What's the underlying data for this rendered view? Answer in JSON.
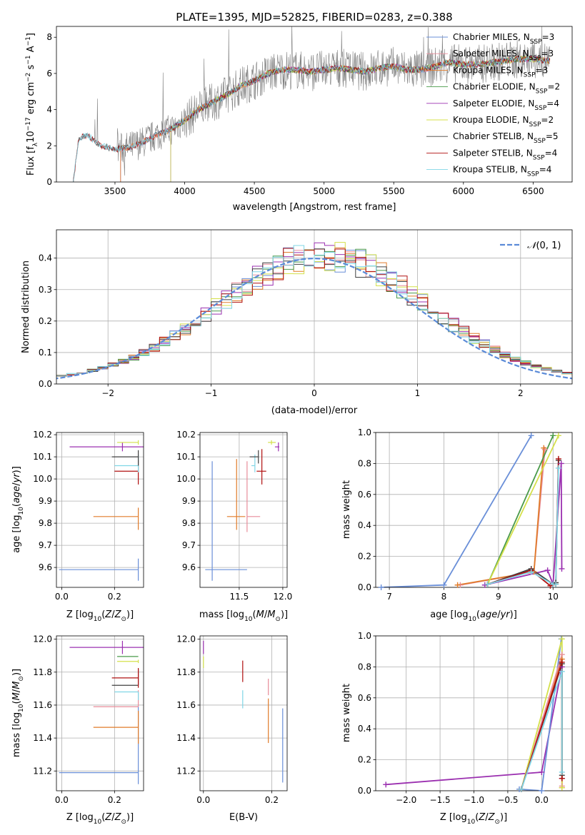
{
  "figure": {
    "title": "PLATE=1395, MJD=52825, FIBERID=0283, z=0.388"
  },
  "colors": {
    "Chabrier MILES": "#6a8fd8",
    "Salpeter MILES": "#e88c9a",
    "Kroupa MILES": "#e07b2a",
    "Chabrier ELODIE": "#4a9a4a",
    "Salpeter ELODIE": "#9b30b0",
    "Kroupa ELODIE": "#d4e04a",
    "Chabrier STELIB": "#404040",
    "Salpeter STELIB": "#b01010",
    "Kroupa STELIB": "#7fd6e6",
    "data": "#808080",
    "normal": "#5b8bd8"
  },
  "chart_data": [
    {
      "id": "spectrum",
      "type": "line",
      "title": "PLATE=1395, MJD=52825, FIBERID=0283, z=0.388",
      "xlabel": "wavelength [Angstrom, rest frame]",
      "ylabel": "Flux [f_λ 10^-17 erg cm^-2 s^-1 A^-1]",
      "xlim": [
        3080,
        6780
      ],
      "ylim": [
        0,
        8.6
      ],
      "xticks": [
        3500,
        4000,
        4500,
        5000,
        5500,
        6000,
        6500
      ],
      "yticks": [
        0,
        2,
        4,
        6,
        8
      ],
      "legend_position": "top-right",
      "legend": [
        "Chabrier MILES, N_SSP=3",
        "Salpeter MILES, N_SSP=3",
        "Kroupa MILES, N_SSP=3",
        "Chabrier ELODIE, N_SSP=2",
        "Salpeter ELODIE, N_SSP=4",
        "Kroupa ELODIE, N_SSP=2",
        "Chabrier STELIB, N_SSP=5",
        "Salpeter STELIB, N_SSP=4",
        "Kroupa STELIB, N_SSP=4"
      ],
      "continuum": {
        "x": [
          3200,
          3240,
          3300,
          3400,
          3500,
          3600,
          3700,
          3800,
          3900,
          4000,
          4100,
          4200,
          4300,
          4400,
          4500,
          4600,
          4700,
          4800,
          4900,
          5000,
          5100,
          5200,
          5300,
          5400,
          5500,
          5600,
          5700,
          5800,
          5900,
          6000,
          6100,
          6200,
          6300,
          6400,
          6500,
          6600
        ],
        "y": [
          0,
          2.4,
          2.6,
          2.0,
          1.8,
          1.9,
          2.2,
          2.6,
          2.9,
          3.4,
          4.0,
          4.4,
          4.8,
          5.3,
          5.6,
          6.0,
          6.2,
          6.2,
          6.1,
          6.2,
          6.3,
          6.2,
          6.1,
          6.3,
          6.4,
          6.2,
          6.2,
          6.4,
          6.6,
          6.5,
          6.5,
          6.6,
          6.7,
          6.8,
          6.8,
          6.7
        ]
      },
      "model_start": {
        "Chabrier MILES": 3540,
        "Salpeter MILES": 3540,
        "Kroupa MILES": 3540,
        "Chabrier ELODIE": 3900,
        "Salpeter ELODIE": 3900,
        "Kroupa ELODIE": 3900,
        "Chabrier STELIB": 3200,
        "Salpeter STELIB": 3200,
        "Kroupa STELIB": 3200
      }
    },
    {
      "id": "residuals",
      "type": "line",
      "xlabel": "(data-model)/error",
      "ylabel": "Normed distribution",
      "xlim": [
        -2.5,
        2.5
      ],
      "ylim": [
        0,
        0.49
      ],
      "xticks": [
        -2,
        -1,
        0,
        1,
        2
      ],
      "yticks": [
        0.0,
        0.1,
        0.2,
        0.3,
        0.4
      ],
      "grid": true,
      "legend_position": "top-right",
      "legend": [
        "N(0,1)"
      ],
      "bin_width": 0.1
    },
    {
      "id": "age_vs_Z",
      "type": "scatter",
      "xlabel": "Z [log10(Z/Z⊙)]",
      "ylabel": "age  [log10(age/yr)]",
      "xlim": [
        -0.02,
        0.31
      ],
      "ylim": [
        9.51,
        10.21
      ],
      "xticks": [
        0.0,
        0.2
      ],
      "yticks": [
        9.6,
        9.7,
        9.8,
        9.9,
        10.0,
        10.1,
        10.2
      ],
      "grid": true,
      "points": [
        {
          "series": "Chabrier MILES",
          "x": 0.29,
          "xerr": [
            0.3,
            0.0
          ],
          "y": 9.59,
          "yerr": [
            0.05,
            0.05
          ]
        },
        {
          "series": "Kroupa MILES",
          "x": 0.29,
          "xerr": [
            0.17,
            0.0
          ],
          "y": 9.83,
          "yerr": [
            0.06,
            0.04
          ]
        },
        {
          "series": "Salpeter STELIB",
          "x": 0.29,
          "xerr": [
            0.09,
            0.0
          ],
          "y": 10.035,
          "yerr": [
            0.06,
            0.05
          ]
        },
        {
          "series": "Kroupa STELIB",
          "x": 0.29,
          "xerr": [
            0.09,
            0.0
          ],
          "y": 10.06,
          "yerr": [
            0.03,
            0.05
          ]
        },
        {
          "series": "Chabrier STELIB",
          "x": 0.29,
          "xerr": [
            0.1,
            0.0
          ],
          "y": 10.1,
          "yerr": [
            0.04,
            0.03
          ]
        },
        {
          "series": "Salpeter ELODIE",
          "x": 0.23,
          "xerr": [
            0.2,
            0.08
          ],
          "y": 10.145,
          "yerr": [
            0.02,
            0.02
          ]
        },
        {
          "series": "Kroupa ELODIE",
          "x": 0.29,
          "xerr": [
            0.08,
            0.0
          ],
          "y": 10.165,
          "yerr": [
            0.01,
            0.01
          ]
        }
      ]
    },
    {
      "id": "age_vs_mass",
      "type": "scatter",
      "xlabel": "mass [log10(M/M⊙)]",
      "ylabel": "",
      "xlim": [
        11.05,
        12.05
      ],
      "ylim": [
        9.51,
        10.21
      ],
      "xticks": [
        11.5,
        12.0
      ],
      "yticks": [
        9.6,
        9.7,
        9.8,
        9.9,
        10.0,
        10.1,
        10.2
      ],
      "grid": true,
      "points": [
        {
          "series": "Chabrier MILES",
          "x": 11.19,
          "xerr": [
            0.08,
            0.4
          ],
          "y": 9.59,
          "yerr": [
            0.05,
            0.49
          ]
        },
        {
          "series": "Kroupa MILES",
          "x": 11.47,
          "xerr": [
            0.11,
            0.1
          ],
          "y": 9.83,
          "yerr": [
            0.06,
            0.26
          ]
        },
        {
          "series": "Salpeter MILES",
          "x": 11.59,
          "xerr": [
            0.0,
            0.15
          ],
          "y": 9.83,
          "yerr": [
            0.07,
            0.25
          ]
        },
        {
          "series": "Kroupa STELIB",
          "x": 11.68,
          "xerr": [
            0.04,
            0.0
          ],
          "y": 10.06,
          "yerr": [
            0.03,
            0.05
          ]
        },
        {
          "series": "Chabrier STELIB",
          "x": 11.72,
          "xerr": [
            0.1,
            0.0
          ],
          "y": 10.1,
          "yerr": [
            0.03,
            0.03
          ]
        },
        {
          "series": "Salpeter STELIB",
          "x": 11.76,
          "xerr": [
            0.06,
            0.05
          ],
          "y": 10.035,
          "yerr": [
            0.06,
            0.1
          ]
        },
        {
          "series": "Kroupa ELODIE",
          "x": 11.87,
          "xerr": [
            0.04,
            0.05
          ],
          "y": 10.165,
          "yerr": [
            0.01,
            0.01
          ]
        },
        {
          "series": "Salpeter ELODIE",
          "x": 11.95,
          "xerr": [
            0.04,
            0.01
          ],
          "y": 10.145,
          "yerr": [
            0.02,
            0.02
          ]
        }
      ]
    },
    {
      "id": "mass_weight_vs_age",
      "type": "line",
      "xlabel": "age  [log10(age/yr)]",
      "ylabel": "mass weight",
      "xlim": [
        6.75,
        10.35
      ],
      "ylim": [
        0.0,
        1.0
      ],
      "xticks": [
        7,
        8,
        9,
        10
      ],
      "yticks": [
        0.0,
        0.2,
        0.4,
        0.6,
        0.8,
        1.0
      ],
      "grid": true,
      "series": [
        {
          "name": "Chabrier MILES",
          "x": [
            6.85,
            8.0,
            9.6
          ],
          "y": [
            0.0,
            0.015,
            0.98
          ]
        },
        {
          "name": "Salpeter MILES",
          "x": [
            8.3,
            9.65,
            9.85
          ],
          "y": [
            0.015,
            0.1,
            0.89
          ]
        },
        {
          "name": "Kroupa MILES",
          "x": [
            8.25,
            9.65,
            9.83
          ],
          "y": [
            0.015,
            0.1,
            0.9
          ]
        },
        {
          "name": "Chabrier ELODIE",
          "x": [
            8.8,
            10.0
          ],
          "y": [
            0.02,
            0.98
          ]
        },
        {
          "name": "Salpeter ELODIE",
          "x": [
            8.75,
            9.9,
            10.0,
            10.15,
            10.16
          ],
          "y": [
            0.015,
            0.11,
            0.02,
            0.8,
            0.12
          ]
        },
        {
          "name": "Kroupa ELODIE",
          "x": [
            8.8,
            10.1
          ],
          "y": [
            0.02,
            0.98
          ]
        },
        {
          "name": "Chabrier STELIB",
          "x": [
            8.8,
            9.6,
            10.0,
            10.05,
            10.1
          ],
          "y": [
            0.02,
            0.12,
            0.02,
            0.03,
            0.82
          ]
        },
        {
          "name": "Salpeter STELIB",
          "x": [
            8.8,
            9.6,
            9.95,
            10.05,
            10.1
          ],
          "y": [
            0.02,
            0.11,
            0.01,
            0.02,
            0.83
          ]
        },
        {
          "name": "Kroupa STELIB",
          "x": [
            8.8,
            9.6,
            10.0,
            10.05,
            10.1
          ],
          "y": [
            0.02,
            0.1,
            0.02,
            0.02,
            0.77
          ]
        }
      ]
    },
    {
      "id": "mass_vs_Z",
      "type": "scatter",
      "xlabel": "Z [log10(Z/Z⊙)]",
      "ylabel": "mass [log10(M/M⊙)]",
      "xlim": [
        -0.02,
        0.31
      ],
      "ylim": [
        11.08,
        12.02
      ],
      "xticks": [
        0.0,
        0.2
      ],
      "yticks": [
        11.2,
        11.4,
        11.6,
        11.8,
        12.0
      ],
      "grid": true,
      "points": [
        {
          "series": "Chabrier MILES",
          "x": 0.29,
          "xerr": [
            0.3,
            0.0
          ],
          "y": 11.19,
          "yerr": [
            0.07,
            0.4
          ]
        },
        {
          "series": "Kroupa MILES",
          "x": 0.29,
          "xerr": [
            0.17,
            0.0
          ],
          "y": 11.465,
          "yerr": [
            0.1,
            0.1
          ]
        },
        {
          "series": "Salpeter MILES",
          "x": 0.29,
          "xerr": [
            0.17,
            0.0
          ],
          "y": 11.59,
          "yerr": [
            0.0,
            0.1
          ]
        },
        {
          "series": "Kroupa STELIB",
          "x": 0.29,
          "xerr": [
            0.09,
            0.0
          ],
          "y": 11.68,
          "yerr": [
            0.05,
            0.0
          ]
        },
        {
          "series": "Chabrier STELIB",
          "x": 0.29,
          "xerr": [
            0.1,
            0.0
          ],
          "y": 11.72,
          "yerr": [
            0.0,
            0.1
          ]
        },
        {
          "series": "Salpeter STELIB",
          "x": 0.29,
          "xerr": [
            0.1,
            0.0
          ],
          "y": 11.765,
          "yerr": [
            0.06,
            0.06
          ]
        },
        {
          "series": "Kroupa ELODIE",
          "x": 0.29,
          "xerr": [
            0.08,
            0.0
          ],
          "y": 11.865,
          "yerr": [
            0.01,
            0.01
          ]
        },
        {
          "series": "Chabrier ELODIE",
          "x": 0.29,
          "xerr": [
            0.08,
            0.0
          ],
          "y": 11.895,
          "yerr": [
            0.0,
            0.0
          ]
        },
        {
          "series": "Salpeter ELODIE",
          "x": 0.23,
          "xerr": [
            0.2,
            0.08
          ],
          "y": 11.95,
          "yerr": [
            0.04,
            0.04
          ]
        }
      ]
    },
    {
      "id": "mass_vs_EBV",
      "type": "scatter",
      "xlabel": "E(B-V)",
      "ylabel": "",
      "xlim": [
        -0.01,
        0.245
      ],
      "ylim": [
        11.08,
        12.02
      ],
      "xticks": [
        0.0,
        0.2
      ],
      "yticks": [
        11.2,
        11.4,
        11.6,
        11.8,
        12.0
      ],
      "grid": true,
      "points": [
        {
          "series": "Salpeter ELODIE",
          "x": 0.0,
          "y": 11.95,
          "yerr": [
            0.04,
            0.04
          ]
        },
        {
          "series": "Kroupa ELODIE",
          "x": 0.0,
          "y": 11.865,
          "yerr": [
            0.04,
            0.03
          ]
        },
        {
          "series": "Salpeter STELIB",
          "x": 0.115,
          "y": 11.8,
          "yerr": [
            0.06,
            0.07
          ]
        },
        {
          "series": "Kroupa STELIB",
          "x": 0.115,
          "y": 11.66,
          "yerr": [
            0.08,
            0.03
          ]
        },
        {
          "series": "Salpeter MILES",
          "x": 0.19,
          "y": 11.66,
          "yerr": [
            0.0,
            0.1
          ]
        },
        {
          "series": "Kroupa MILES",
          "x": 0.19,
          "y": 11.49,
          "yerr": [
            0.12,
            0.15
          ]
        },
        {
          "series": "Chabrier MILES",
          "x": 0.232,
          "y": 11.35,
          "yerr": [
            0.22,
            0.23
          ]
        }
      ]
    },
    {
      "id": "mass_weight_vs_Z",
      "type": "line",
      "xlabel": "Z [log10(Z/Z⊙)]",
      "ylabel": "mass weight",
      "xlim": [
        -2.45,
        0.45
      ],
      "ylim": [
        0.0,
        1.0
      ],
      "xticks": [
        -2.0,
        -1.5,
        -1.0,
        -0.5,
        0.0
      ],
      "yticks": [
        0.0,
        0.2,
        0.4,
        0.6,
        0.8,
        1.0
      ],
      "grid": true,
      "series": [
        {
          "name": "Salpeter ELODIE",
          "x": [
            -2.3,
            0.0,
            0.3,
            0.3
          ],
          "y": [
            0.04,
            0.12,
            0.8,
            0.08
          ]
        },
        {
          "name": "Chabrier MILES",
          "x": [
            -0.33,
            0.0,
            0.29
          ],
          "y": [
            0.01,
            0.0,
            0.98
          ]
        },
        {
          "name": "Kroupa MILES",
          "x": [
            -0.3,
            0.3,
            0.3
          ],
          "y": [
            0.01,
            0.85,
            0.02
          ]
        },
        {
          "name": "Salpeter MILES",
          "x": [
            -0.3,
            0.3,
            0.3
          ],
          "y": [
            0.01,
            0.88,
            0.03
          ]
        },
        {
          "name": "Kroupa ELODIE",
          "x": [
            -0.3,
            0.3,
            0.3
          ],
          "y": [
            0.01,
            0.98,
            0.02
          ]
        },
        {
          "name": "Chabrier STELIB",
          "x": [
            -0.3,
            0.3,
            0.3
          ],
          "y": [
            0.01,
            0.82,
            0.1
          ]
        },
        {
          "name": "Salpeter STELIB",
          "x": [
            -0.3,
            0.3,
            0.3
          ],
          "y": [
            0.01,
            0.83,
            0.08
          ]
        },
        {
          "name": "Kroupa STELIB",
          "x": [
            -0.3,
            0.3,
            0.3
          ],
          "y": [
            0.01,
            0.77,
            0.12
          ]
        }
      ]
    }
  ]
}
